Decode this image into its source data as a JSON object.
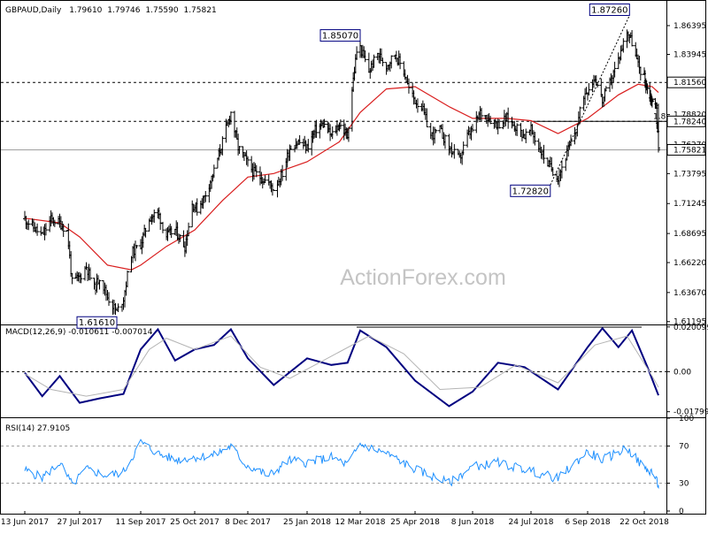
{
  "window": {
    "symbol": "GBPAUD,Daily",
    "open": "1.79610",
    "high": "1.79746",
    "low": "1.75590",
    "close": "1.75821",
    "watermark": "ActionForex.com"
  },
  "colors": {
    "price": "#000000",
    "ema": "#d91e1e",
    "macd": "#000080",
    "signal": "#b4b4b4",
    "rsi": "#1e90ff",
    "frame": "#000000",
    "level_line": "#000000"
  },
  "chart_data": [
    {
      "id": "price",
      "type": "ohlc",
      "label": "GBPAUD,Daily",
      "header_values": [
        "1.79610",
        "1.79746",
        "1.75590",
        "1.75821"
      ],
      "x_tick_labels": [
        "13 Jun 2017",
        "27 Jul 2017",
        "11 Sep 2017",
        "25 Oct 2017",
        "8 Dec 2017",
        "25 Jan 2018",
        "12 Mar 2018",
        "25 Apr 2018",
        "8 Jun 2018",
        "24 Jul 2018",
        "6 Sep 2018",
        "22 Oct 2018"
      ],
      "y_tick_labels": [
        "1.86395",
        "1.83945",
        "1.81560",
        "1.78820",
        "1.76270",
        "1.75821",
        "1.73795",
        "1.71245",
        "1.68695",
        "1.66220",
        "1.63670",
        "1.61195"
      ],
      "ylim": [
        1.6095,
        1.8835
      ],
      "close_path": [
        {
          "x": "13 Jun 2017",
          "y": 1.6995
        },
        {
          "x": "20 Jun 2017",
          "y": 1.692
        },
        {
          "x": "27 Jun 2017",
          "y": 1.685
        },
        {
          "x": "4 Jul 2017",
          "y": 1.699
        },
        {
          "x": "11 Jul 2017",
          "y": 1.696
        },
        {
          "x": "17 Jul 2017",
          "y": 1.689
        },
        {
          "x": "21 Jul 2017",
          "y": 1.645
        },
        {
          "x": "27 Jul 2017",
          "y": 1.65
        },
        {
          "x": "1 Aug 2017",
          "y": 1.659
        },
        {
          "x": "7 Aug 2017",
          "y": 1.64
        },
        {
          "x": "11 Aug 2017",
          "y": 1.65
        },
        {
          "x": "17 Aug 2017",
          "y": 1.633
        },
        {
          "x": "24 Aug 2017",
          "y": 1.62
        },
        {
          "x": "29 Aug 2017",
          "y": 1.632
        },
        {
          "x": "4 Sep 2017",
          "y": 1.67
        },
        {
          "x": "11 Sep 2017",
          "y": 1.678
        },
        {
          "x": "18 Sep 2017",
          "y": 1.7
        },
        {
          "x": "25 Sep 2017",
          "y": 1.705
        },
        {
          "x": "2 Oct 2017",
          "y": 1.685
        },
        {
          "x": "9 Oct 2017",
          "y": 1.69
        },
        {
          "x": "17 Oct 2017",
          "y": 1.676
        },
        {
          "x": "23 Oct 2017",
          "y": 1.712
        },
        {
          "x": "27 Oct 2017",
          "y": 1.708
        },
        {
          "x": "2 Nov 2017",
          "y": 1.718
        },
        {
          "x": "10 Nov 2017",
          "y": 1.74
        },
        {
          "x": "17 Nov 2017",
          "y": 1.765
        },
        {
          "x": "24 Nov 2017",
          "y": 1.79
        },
        {
          "x": "30 Nov 2017",
          "y": 1.76
        },
        {
          "x": "6 Dec 2017",
          "y": 1.75
        },
        {
          "x": "12 Dec 2017",
          "y": 1.74
        },
        {
          "x": "18 Dec 2017",
          "y": 1.735
        },
        {
          "x": "25 Dec 2017",
          "y": 1.73
        },
        {
          "x": "29 Dec 2017",
          "y": 1.725
        },
        {
          "x": "5 Jan 2018",
          "y": 1.738
        },
        {
          "x": "11 Jan 2018",
          "y": 1.76
        },
        {
          "x": "18 Jan 2018",
          "y": 1.765
        },
        {
          "x": "25 Jan 2018",
          "y": 1.76
        },
        {
          "x": "1 Feb 2018",
          "y": 1.775
        },
        {
          "x": "8 Feb 2018",
          "y": 1.78
        },
        {
          "x": "15 Feb 2018",
          "y": 1.77
        },
        {
          "x": "22 Feb 2018",
          "y": 1.78
        },
        {
          "x": "1 Mar 2018",
          "y": 1.77
        },
        {
          "x": "5 Mar 2018",
          "y": 1.81
        },
        {
          "x": "9 Mar 2018",
          "y": 1.842
        },
        {
          "x": "12 Mar 2018",
          "y": 1.845
        },
        {
          "x": "19 Mar 2018",
          "y": 1.825
        },
        {
          "x": "26 Mar 2018",
          "y": 1.84
        },
        {
          "x": "2 Apr 2018",
          "y": 1.83
        },
        {
          "x": "9 Apr 2018",
          "y": 1.84
        },
        {
          "x": "16 Apr 2018",
          "y": 1.825
        },
        {
          "x": "20 Apr 2018",
          "y": 1.81
        },
        {
          "x": "25 Apr 2018",
          "y": 1.8
        },
        {
          "x": "30 Apr 2018",
          "y": 1.795
        },
        {
          "x": "7 May 2018",
          "y": 1.77
        },
        {
          "x": "14 May 2018",
          "y": 1.775
        },
        {
          "x": "21 May 2018",
          "y": 1.76
        },
        {
          "x": "29 May 2018",
          "y": 1.75
        },
        {
          "x": "4 Jun 2018",
          "y": 1.77
        },
        {
          "x": "8 Jun 2018",
          "y": 1.775
        },
        {
          "x": "14 Jun 2018",
          "y": 1.79
        },
        {
          "x": "21 Jun 2018",
          "y": 1.785
        },
        {
          "x": "28 Jun 2018",
          "y": 1.78
        },
        {
          "x": "5 Jul 2018",
          "y": 1.785
        },
        {
          "x": "12 Jul 2018",
          "y": 1.778
        },
        {
          "x": "19 Jul 2018",
          "y": 1.77
        },
        {
          "x": "24 Jul 2018",
          "y": 1.775
        },
        {
          "x": "30 Jul 2018",
          "y": 1.76
        },
        {
          "x": "7 Aug 2018",
          "y": 1.745
        },
        {
          "x": "14 Aug 2018",
          "y": 1.735
        },
        {
          "x": "21 Aug 2018",
          "y": 1.755
        },
        {
          "x": "28 Aug 2018",
          "y": 1.775
        },
        {
          "x": "3 Sep 2018",
          "y": 1.805
        },
        {
          "x": "6 Sep 2018",
          "y": 1.81
        },
        {
          "x": "12 Sep 2018",
          "y": 1.82
        },
        {
          "x": "18 Sep 2018",
          "y": 1.8
        },
        {
          "x": "24 Sep 2018",
          "y": 1.815
        },
        {
          "x": "1 Oct 2018",
          "y": 1.835
        },
        {
          "x": "8 Oct 2018",
          "y": 1.86
        },
        {
          "x": "12 Oct 2018",
          "y": 1.85
        },
        {
          "x": "17 Oct 2018",
          "y": 1.83
        },
        {
          "x": "22 Oct 2018",
          "y": 1.82
        },
        {
          "x": "26 Oct 2018",
          "y": 1.81
        },
        {
          "x": "1 Nov 2018",
          "y": 1.8
        },
        {
          "x": "6 Nov 2018",
          "y": 1.7961
        },
        {
          "x": "9 Nov 2018",
          "y": 1.7582
        }
      ],
      "ema_path": [
        {
          "x": "13 Jun 2017",
          "y": 1.7
        },
        {
          "x": "11 Jul 2017",
          "y": 1.696
        },
        {
          "x": "27 Jul 2017",
          "y": 1.684
        },
        {
          "x": "17 Aug 2017",
          "y": 1.66
        },
        {
          "x": "4 Sep 2017",
          "y": 1.656
        },
        {
          "x": "11 Sep 2017",
          "y": 1.66
        },
        {
          "x": "2 Oct 2017",
          "y": 1.676
        },
        {
          "x": "25 Oct 2017",
          "y": 1.69
        },
        {
          "x": "17 Nov 2017",
          "y": 1.715
        },
        {
          "x": "8 Dec 2017",
          "y": 1.735
        },
        {
          "x": "29 Dec 2017",
          "y": 1.738
        },
        {
          "x": "25 Jan 2018",
          "y": 1.748
        },
        {
          "x": "22 Feb 2018",
          "y": 1.765
        },
        {
          "x": "12 Mar 2018",
          "y": 1.79
        },
        {
          "x": "2 Apr 2018",
          "y": 1.81
        },
        {
          "x": "25 Apr 2018",
          "y": 1.812
        },
        {
          "x": "21 May 2018",
          "y": 1.795
        },
        {
          "x": "8 Jun 2018",
          "y": 1.785
        },
        {
          "x": "5 Jul 2018",
          "y": 1.785
        },
        {
          "x": "24 Jul 2018",
          "y": 1.783
        },
        {
          "x": "14 Aug 2018",
          "y": 1.772
        },
        {
          "x": "6 Sep 2018",
          "y": 1.785
        },
        {
          "x": "1 Oct 2018",
          "y": 1.805
        },
        {
          "x": "17 Oct 2018",
          "y": 1.814
        },
        {
          "x": "1 Nov 2018",
          "y": 1.812
        },
        {
          "x": "9 Nov 2018",
          "y": 1.807
        }
      ],
      "hlines": [
        {
          "label": "1.81560",
          "value": 1.8156,
          "style": "dashed"
        },
        {
          "label": "1.78240",
          "value": 1.7824,
          "style": "dashed"
        },
        {
          "label": "1.75821",
          "value": 1.75821,
          "style": "solid-gray"
        }
      ],
      "annotations": [
        {
          "text": "1.85070",
          "x": "12 Mar 2018",
          "y": 1.8507,
          "box_at": "up-left"
        },
        {
          "text": "1.87260",
          "x": "10 Oct 2018",
          "y": 1.8726,
          "box_at": "up-left"
        },
        {
          "text": "1.72820",
          "x": "8 Aug 2018",
          "y": 1.7282,
          "box_at": "down-left"
        },
        {
          "text": "1.61610",
          "x": "24 Aug 2017",
          "y": 1.6161,
          "box_at": "down-left"
        }
      ],
      "line_tag": "1.8"
    },
    {
      "id": "macd",
      "type": "line",
      "label": "MACD(12,26,9) -0.010611 -0.007014",
      "y_tick_labels": [
        "0.020099",
        "0.00",
        "-0.017992"
      ],
      "ylim": [
        -0.0205,
        0.0212
      ],
      "series": [
        {
          "role": "macd",
          "values": [
            {
              "x": "13 Jun 2017",
              "y": -0.0005
            },
            {
              "x": "27 Jun 2017",
              "y": -0.011
            },
            {
              "x": "11 Jul 2017",
              "y": -0.002
            },
            {
              "x": "27 Jul 2017",
              "y": -0.014
            },
            {
              "x": "11 Aug 2017",
              "y": -0.012
            },
            {
              "x": "29 Aug 2017",
              "y": -0.01
            },
            {
              "x": "11 Sep 2017",
              "y": 0.01
            },
            {
              "x": "25 Sep 2017",
              "y": 0.019
            },
            {
              "x": "9 Oct 2017",
              "y": 0.005
            },
            {
              "x": "25 Oct 2017",
              "y": 0.01
            },
            {
              "x": "10 Nov 2017",
              "y": 0.012
            },
            {
              "x": "24 Nov 2017",
              "y": 0.019
            },
            {
              "x": "8 Dec 2017",
              "y": 0.006
            },
            {
              "x": "29 Dec 2017",
              "y": -0.006
            },
            {
              "x": "25 Jan 2018",
              "y": 0.006
            },
            {
              "x": "15 Feb 2018",
              "y": 0.003
            },
            {
              "x": "1 Mar 2018",
              "y": 0.004
            },
            {
              "x": "12 Mar 2018",
              "y": 0.0185
            },
            {
              "x": "2 Apr 2018",
              "y": 0.011
            },
            {
              "x": "25 Apr 2018",
              "y": -0.004
            },
            {
              "x": "21 May 2018",
              "y": -0.0155
            },
            {
              "x": "8 Jun 2018",
              "y": -0.009
            },
            {
              "x": "28 Jun 2018",
              "y": 0.004
            },
            {
              "x": "19 Jul 2018",
              "y": 0.002
            },
            {
              "x": "14 Aug 2018",
              "y": -0.008
            },
            {
              "x": "6 Sep 2018",
              "y": 0.011
            },
            {
              "x": "18 Sep 2018",
              "y": 0.0195
            },
            {
              "x": "1 Oct 2018",
              "y": 0.011
            },
            {
              "x": "12 Oct 2018",
              "y": 0.0185
            },
            {
              "x": "26 Oct 2018",
              "y": 0.002
            },
            {
              "x": "9 Nov 2018",
              "y": -0.0106
            }
          ]
        },
        {
          "role": "signal",
          "values": [
            {
              "x": "13 Jun 2017",
              "y": -0.001
            },
            {
              "x": "4 Jul 2017",
              "y": -0.008
            },
            {
              "x": "1 Aug 2017",
              "y": -0.011
            },
            {
              "x": "29 Aug 2017",
              "y": -0.008
            },
            {
              "x": "18 Sep 2017",
              "y": 0.01
            },
            {
              "x": "2 Oct 2017",
              "y": 0.015
            },
            {
              "x": "25 Oct 2017",
              "y": 0.01
            },
            {
              "x": "24 Nov 2017",
              "y": 0.016
            },
            {
              "x": "18 Dec 2017",
              "y": 0.002
            },
            {
              "x": "11 Jan 2018",
              "y": -0.003
            },
            {
              "x": "8 Feb 2018",
              "y": 0.005
            },
            {
              "x": "19 Mar 2018",
              "y": 0.016
            },
            {
              "x": "16 Apr 2018",
              "y": 0.008
            },
            {
              "x": "14 May 2018",
              "y": -0.008
            },
            {
              "x": "14 Jun 2018",
              "y": -0.007
            },
            {
              "x": "12 Jul 2018",
              "y": 0.003
            },
            {
              "x": "14 Aug 2018",
              "y": -0.005
            },
            {
              "x": "12 Sep 2018",
              "y": 0.012
            },
            {
              "x": "8 Oct 2018",
              "y": 0.016
            },
            {
              "x": "1 Nov 2018",
              "y": -0.002
            },
            {
              "x": "9 Nov 2018",
              "y": -0.007
            }
          ]
        }
      ],
      "hline_zero": 0
    },
    {
      "id": "rsi",
      "type": "line",
      "label": "RSI(14) 27.9105",
      "y_tick_labels": [
        "100",
        "70",
        "30",
        "0"
      ],
      "ylim": [
        0,
        100
      ],
      "levels": [
        70,
        30
      ],
      "values": [
        {
          "x": "13 Jun 2017",
          "y": 44
        },
        {
          "x": "27 Jun 2017",
          "y": 36
        },
        {
          "x": "11 Jul 2017",
          "y": 52
        },
        {
          "x": "21 Jul 2017",
          "y": 28
        },
        {
          "x": "1 Aug 2017",
          "y": 45
        },
        {
          "x": "17 Aug 2017",
          "y": 38
        },
        {
          "x": "29 Aug 2017",
          "y": 42
        },
        {
          "x": "11 Sep 2017",
          "y": 74
        },
        {
          "x": "25 Sep 2017",
          "y": 62
        },
        {
          "x": "9 Oct 2017",
          "y": 55
        },
        {
          "x": "25 Oct 2017",
          "y": 58
        },
        {
          "x": "10 Nov 2017",
          "y": 60
        },
        {
          "x": "24 Nov 2017",
          "y": 70
        },
        {
          "x": "6 Dec 2017",
          "y": 50
        },
        {
          "x": "25 Dec 2017",
          "y": 38
        },
        {
          "x": "11 Jan 2018",
          "y": 55
        },
        {
          "x": "25 Jan 2018",
          "y": 52
        },
        {
          "x": "15 Feb 2018",
          "y": 58
        },
        {
          "x": "1 Mar 2018",
          "y": 50
        },
        {
          "x": "12 Mar 2018",
          "y": 72
        },
        {
          "x": "2 Apr 2018",
          "y": 62
        },
        {
          "x": "25 Apr 2018",
          "y": 45
        },
        {
          "x": "21 May 2018",
          "y": 30
        },
        {
          "x": "8 Jun 2018",
          "y": 48
        },
        {
          "x": "28 Jun 2018",
          "y": 52
        },
        {
          "x": "19 Jul 2018",
          "y": 45
        },
        {
          "x": "14 Aug 2018",
          "y": 35
        },
        {
          "x": "6 Sep 2018",
          "y": 64
        },
        {
          "x": "18 Sep 2018",
          "y": 55
        },
        {
          "x": "8 Oct 2018",
          "y": 68
        },
        {
          "x": "22 Oct 2018",
          "y": 46
        },
        {
          "x": "1 Nov 2018",
          "y": 42
        },
        {
          "x": "9 Nov 2018",
          "y": 28
        }
      ]
    }
  ]
}
